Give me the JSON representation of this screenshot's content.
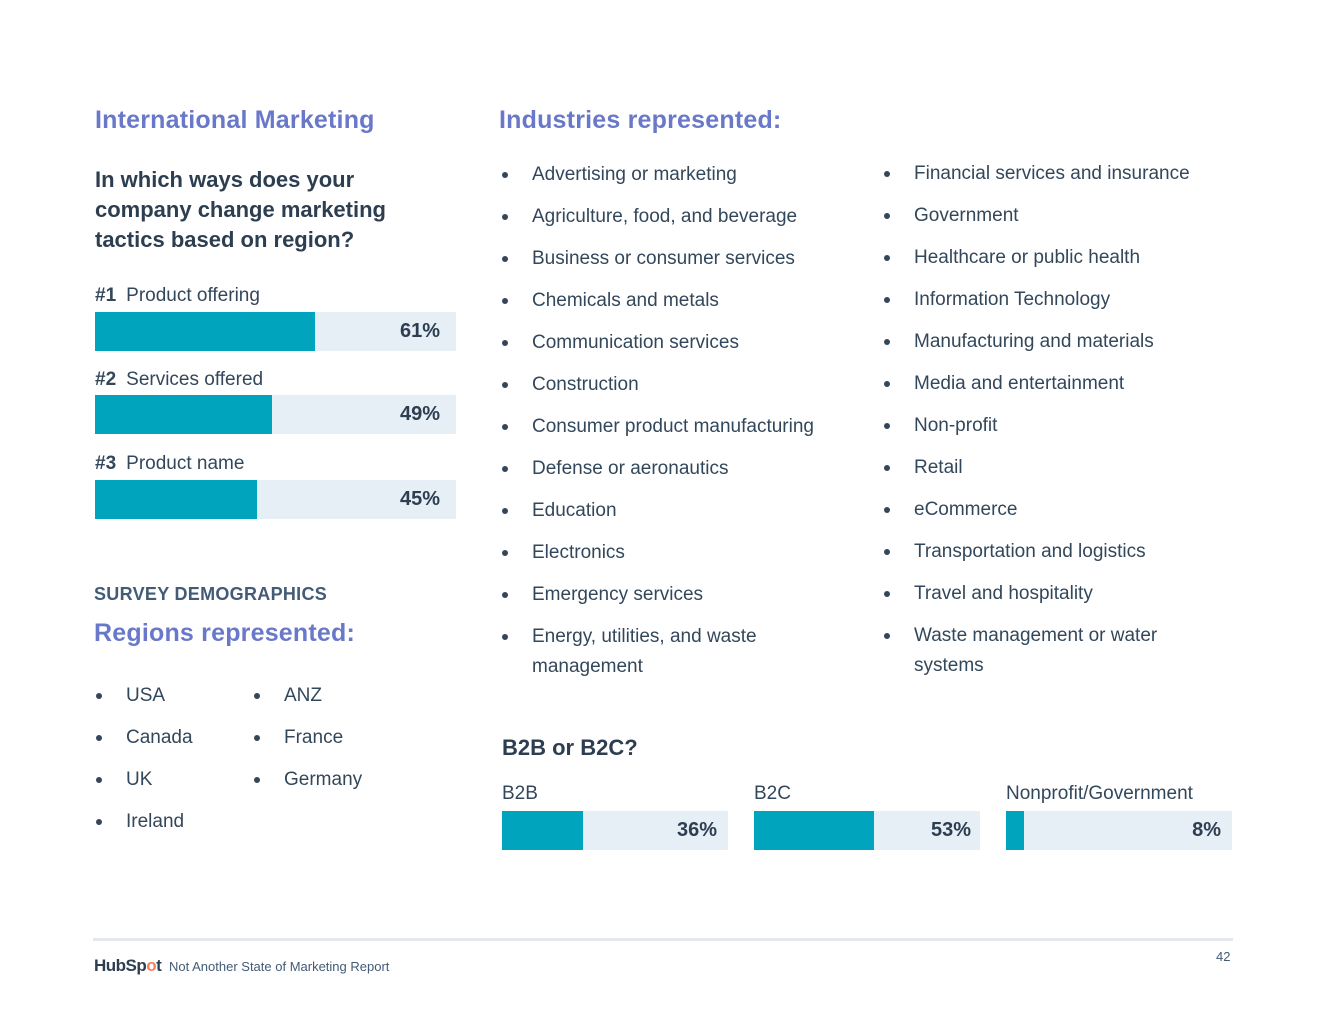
{
  "left": {
    "section_title": "International Marketing",
    "question": "In which ways does your company change marketing tactics based on region?",
    "ranks": [
      {
        "rank": "#1",
        "label": "Product offering",
        "pct_text": "61%",
        "value": 61
      },
      {
        "rank": "#2",
        "label": "Services offered",
        "pct_text": "49%",
        "value": 49
      },
      {
        "rank": "#3",
        "label": "Product name",
        "pct_text": "45%",
        "value": 45
      }
    ],
    "demographics_heading": "SURVEY DEMOGRAPHICS",
    "regions_title": "Regions represented:",
    "regions_col1": [
      "USA",
      "Canada",
      "UK",
      "Ireland"
    ],
    "regions_col2": [
      "ANZ",
      "France",
      "Germany"
    ]
  },
  "industries": {
    "title": "Industries represented:",
    "col1": [
      "Advertising or marketing",
      "Agriculture, food, and beverage",
      "Business or consumer services",
      "Chemicals and metals",
      "Communication services",
      "Construction",
      "Consumer product manufacturing",
      "Defense or aeronautics",
      "Education",
      "Electronics",
      "Emergency services",
      "Energy, utilities, and waste management"
    ],
    "col2": [
      "Financial services and insurance",
      "Government",
      "Healthcare or public health",
      "Information Technology",
      "Manufacturing and materials",
      "Media and entertainment",
      "Non-profit",
      "Retail",
      "eCommerce",
      "Transportation and logistics",
      "Travel and hospitality",
      "Waste management or water systems"
    ]
  },
  "b2": {
    "title": "B2B or B2C?",
    "items": [
      {
        "label": "B2B",
        "pct_text": "36%",
        "value": 36
      },
      {
        "label": "B2C",
        "pct_text": "53%",
        "value": 53
      },
      {
        "label": "Nonprofit/Government",
        "pct_text": "8%",
        "value": 8
      }
    ]
  },
  "footer": {
    "logo_text_a": "HubSp",
    "logo_text_o": "o",
    "logo_text_b": "t",
    "report_title": "Not Another State of Marketing Report",
    "page_number": "42"
  },
  "colors": {
    "accent_title": "#6a78c9",
    "bar_fill": "#00a4bd",
    "bar_track": "#e6eef6",
    "logo_orange": "#ff7a59"
  }
}
